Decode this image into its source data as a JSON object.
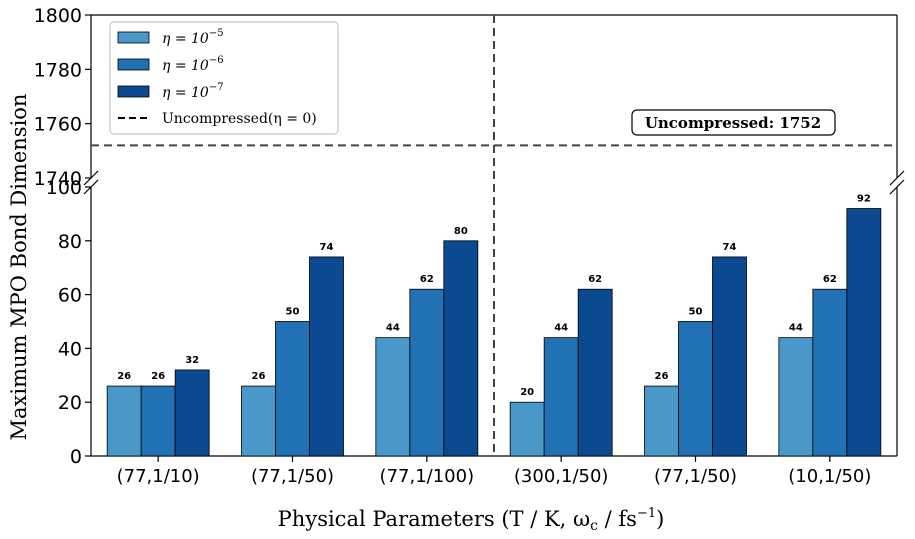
{
  "chart_data": {
    "type": "bar",
    "categories": [
      "(77,1/10)",
      "(77,1/50)",
      "(77,1/100)",
      "(300,1/50)",
      "(77,1/50)",
      "(10,1/50)"
    ],
    "series": [
      {
        "name": "η = 10⁻⁵",
        "legend_base": "η = 10",
        "legend_exp": "−5",
        "color": "#4a98c9",
        "values": [
          26,
          26,
          44,
          20,
          26,
          44
        ]
      },
      {
        "name": "η = 10⁻⁶",
        "legend_base": "η = 10",
        "legend_exp": "−6",
        "color": "#2171b5",
        "values": [
          26,
          50,
          62,
          44,
          50,
          62
        ]
      },
      {
        "name": "η = 10⁻⁷",
        "legend_base": "η = 10",
        "legend_exp": "−7",
        "color": "#0b4a91",
        "values": [
          32,
          74,
          80,
          62,
          74,
          92
        ]
      }
    ],
    "reference_line": {
      "label": "Uncompressed(η = 0)",
      "value": 1752,
      "annotation": "Uncompressed: 1752"
    },
    "xlabel": "Physical Parameters (T / K, ω",
    "xlabel_sub": "c",
    "xlabel_tail": " / fs",
    "xlabel_sup": "−1",
    "xlabel_close": ")",
    "ylabel": "Maximum MPO Bond Dimension",
    "ylim_lower": [
      0,
      100
    ],
    "ylim_upper": [
      1740,
      1800
    ],
    "yticks_lower": [
      "0",
      "20",
      "40",
      "60",
      "80",
      "100"
    ],
    "yticks_upper": [
      "1740",
      "1760",
      "1780",
      "1800"
    ],
    "broken_axis": true,
    "legend_position": "top-left",
    "vertical_divider_between": [
      "(77,1/100)",
      "(300,1/50)"
    ]
  }
}
